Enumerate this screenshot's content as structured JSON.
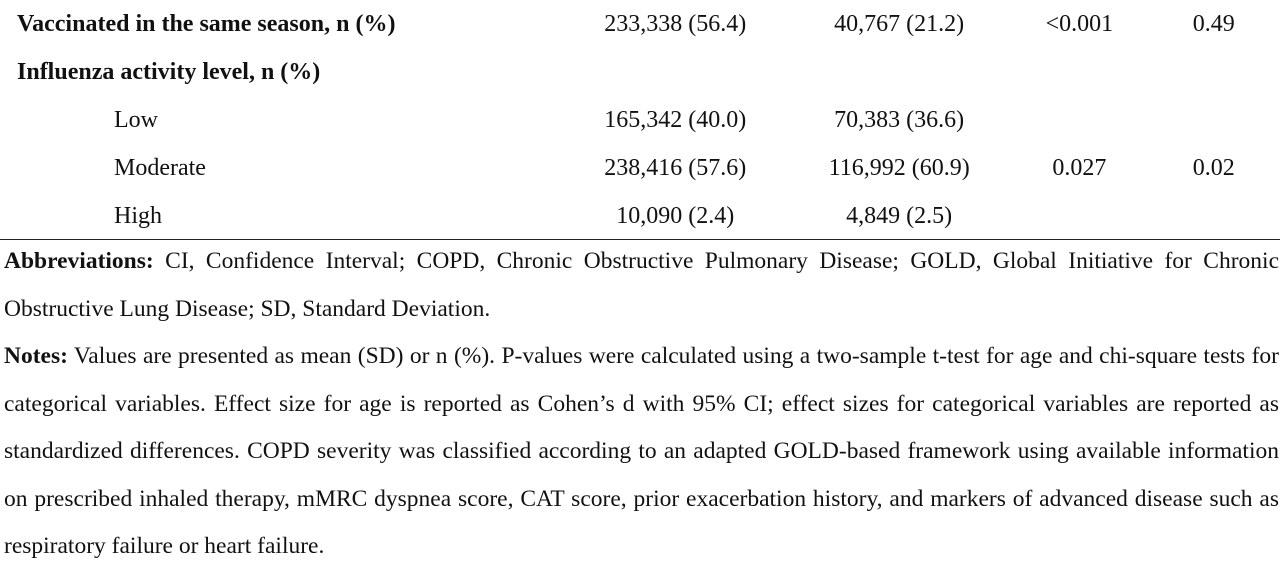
{
  "rows": [
    {
      "label": "Vaccinated in the same season, n (%)",
      "col1": "233,338 (56.4)",
      "col2": "40,767 (21.2)",
      "pvalue": "<0.001",
      "effect": "0.49",
      "bold": true,
      "indent": false
    },
    {
      "label": "Influenza activity level, n (%)",
      "col1": "",
      "col2": "",
      "pvalue": "",
      "effect": "",
      "bold": true,
      "indent": false
    },
    {
      "label": "Low",
      "col1": "165,342 (40.0)",
      "col2": "70,383 (36.6)",
      "pvalue": "",
      "effect": "",
      "bold": false,
      "indent": true
    },
    {
      "label": "Moderate",
      "col1": "238,416 (57.6)",
      "col2": "116,992 (60.9)",
      "pvalue": "0.027",
      "effect": "0.02",
      "bold": false,
      "indent": true
    },
    {
      "label": "High",
      "col1": "10,090 (2.4)",
      "col2": "4,849 (2.5)",
      "pvalue": "",
      "effect": "",
      "bold": false,
      "indent": true
    }
  ],
  "footnotes": {
    "abbreviations_label": "Abbreviations:",
    "abbreviations_text": " CI, Confidence Interval; COPD, Chronic Obstructive Pulmonary Disease; GOLD, Global Initiative for Chronic Obstructive Lung Disease; SD, Standard Deviation.",
    "notes_label": "Notes:",
    "notes_text": " Values are presented as mean (SD) or n (%). P-values were calculated using a two-sample t-test for age and chi-square tests for categorical variables. Effect size for age is reported as Cohen’s d with 95% CI; effect sizes for categorical variables are reported as standardized differences. COPD severity was classified according to an adapted GOLD-based framework using available information on prescribed inhaled therapy, mMRC dyspnea score, CAT score, prior exacerbation history, and markers of advanced disease such as respiratory failure or heart failure."
  }
}
